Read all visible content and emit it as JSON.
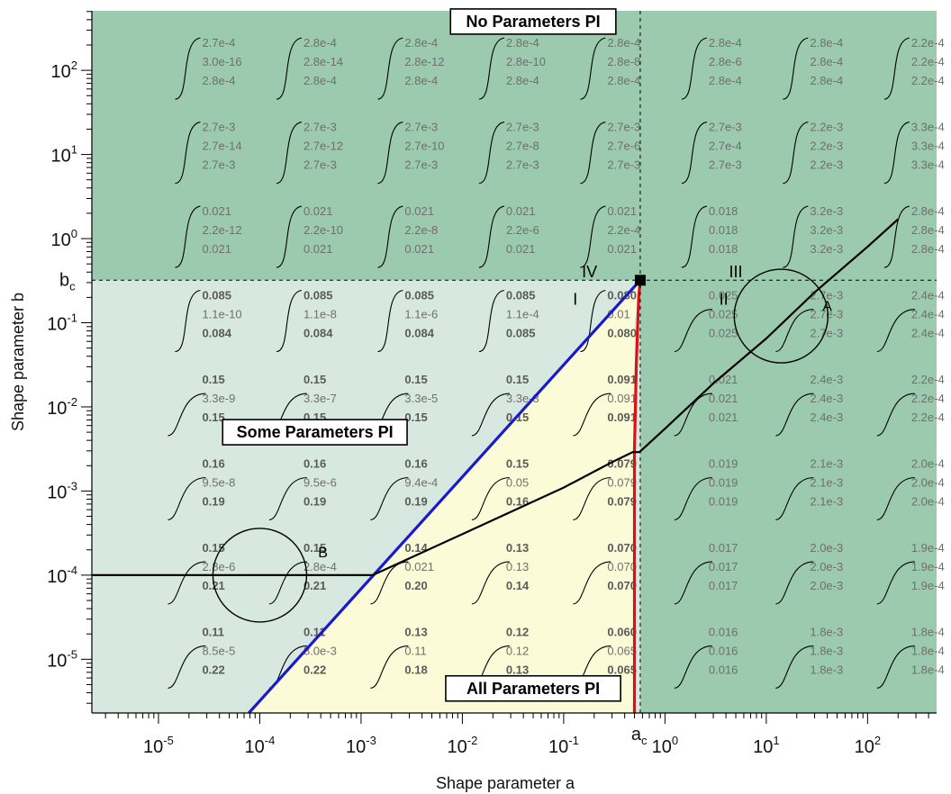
{
  "chart_data": {
    "type": "heatmap",
    "xlabel": "Shape parameter a",
    "ylabel": "Shape parameter b",
    "x_scale": "log",
    "y_scale": "log",
    "xlim": [
      2.2e-06,
      480
    ],
    "ylim": [
      2.3e-06,
      510
    ],
    "x_ticks": [
      {
        "value": 1e-05,
        "base": "10",
        "exp": "-5"
      },
      {
        "value": 0.0001,
        "base": "10",
        "exp": "-4"
      },
      {
        "value": 0.001,
        "base": "10",
        "exp": "-3"
      },
      {
        "value": 0.01,
        "base": "10",
        "exp": "-2"
      },
      {
        "value": 0.1,
        "base": "10",
        "exp": "-1"
      },
      {
        "value": 1,
        "base": "10",
        "exp": "0"
      },
      {
        "value": 10,
        "base": "10",
        "exp": "1"
      },
      {
        "value": 100,
        "base": "10",
        "exp": "2"
      }
    ],
    "y_ticks": [
      {
        "value": 100,
        "base": "10",
        "exp": "2"
      },
      {
        "value": 10,
        "base": "10",
        "exp": "1"
      },
      {
        "value": 1,
        "base": "10",
        "exp": "0"
      },
      {
        "value": 0.1,
        "base": "10",
        "exp": "-1"
      },
      {
        "value": 0.01,
        "base": "10",
        "exp": "-2"
      },
      {
        "value": 0.001,
        "base": "10",
        "exp": "-3"
      },
      {
        "value": 0.0001,
        "base": "10",
        "exp": "-4"
      },
      {
        "value": 1e-05,
        "base": "10",
        "exp": "-5"
      }
    ],
    "critical": {
      "a": 0.57,
      "b": 0.32,
      "a_label": {
        "base": "a",
        "sub": "c"
      },
      "b_label": {
        "base": "b",
        "sub": "c"
      }
    },
    "region_labels": [
      {
        "text": "No Parameters PI",
        "a": 0.05,
        "b": 380
      },
      {
        "text": "Some Parameters PI",
        "a": 0.00035,
        "b": 0.005
      },
      {
        "text": "All Parameters PI",
        "a": 0.05,
        "b": 4.5e-06
      }
    ],
    "roman_labels": [
      {
        "text": "IV",
        "a": 0.18,
        "b": 0.4
      },
      {
        "text": "I",
        "a": 0.13,
        "b": 0.19
      },
      {
        "text": "III",
        "a": 5.0,
        "b": 0.4
      },
      {
        "text": "II",
        "a": 3.8,
        "b": 0.19
      }
    ],
    "annotations": [
      {
        "text": "A",
        "a": 40,
        "b": 0.16
      },
      {
        "text": "B",
        "a": 0.00042,
        "b": 0.00019
      }
    ],
    "circles": [
      {
        "name": "A",
        "a": 14,
        "b": 0.12
      },
      {
        "name": "B",
        "a": 0.0001,
        "b": 0.0001
      }
    ],
    "cell_columns_a": [
      0.0001,
      0.001,
      0.01,
      0.1,
      1,
      10,
      100,
      1000
    ],
    "cell_rows_b": [
      100,
      10,
      1,
      0.1,
      0.01,
      0.001,
      0.0001,
      1e-05
    ],
    "cell_values": [
      [
        [
          "2.7e-4",
          "3.0e-16",
          "2.8e-4"
        ],
        [
          "2.8e-4",
          "2.8e-14",
          "2.8e-4"
        ],
        [
          "2.8e-4",
          "2.8e-12",
          "2.8e-4"
        ],
        [
          "2.8e-4",
          "2.8e-10",
          "2.8e-4"
        ],
        [
          "2.8e-4",
          "2.8e-8",
          "2.8e-4"
        ],
        [
          "2.8e-4",
          "2.8e-6",
          "2.8e-4"
        ],
        [
          "2.8e-4",
          "2.8e-4",
          "2.8e-4"
        ],
        [
          "2.2e-4",
          "2.2e-4",
          "2.2e-4"
        ]
      ],
      [
        [
          "2.7e-3",
          "2.7e-14",
          "2.7e-3"
        ],
        [
          "2.7e-3",
          "2.7e-12",
          "2.7e-3"
        ],
        [
          "2.7e-3",
          "2.7e-10",
          "2.7e-3"
        ],
        [
          "2.7e-3",
          "2.7e-8",
          "2.7e-3"
        ],
        [
          "2.7e-3",
          "2.7e-6",
          "2.7e-3"
        ],
        [
          "2.7e-3",
          "2.7e-4",
          "2.7e-3"
        ],
        [
          "2.2e-3",
          "2.2e-3",
          "2.2e-3"
        ],
        [
          "3.3e-4",
          "3.3e-4",
          "3.3e-4"
        ]
      ],
      [
        [
          "0.021",
          "2.2e-12",
          "0.021"
        ],
        [
          "0.021",
          "2.2e-10",
          "0.021"
        ],
        [
          "0.021",
          "2.2e-8",
          "0.021"
        ],
        [
          "0.021",
          "2.2e-6",
          "0.021"
        ],
        [
          "0.021",
          "2.2e-4",
          "0.021"
        ],
        [
          "0.018",
          "0.018",
          "0.018"
        ],
        [
          "3.2e-3",
          "3.2e-3",
          "3.2e-3"
        ],
        [
          "2.8e-4",
          "2.8e-4",
          "2.8e-4"
        ]
      ],
      [
        [
          "0.085",
          "1.1e-10",
          "0.084"
        ],
        [
          "0.085",
          "1.1e-8",
          "0.084"
        ],
        [
          "0.085",
          "1.1e-6",
          "0.084"
        ],
        [
          "0.085",
          "1.1e-4",
          "0.085"
        ],
        [
          "0.080",
          "0.01",
          "0.080"
        ],
        [
          "0.025",
          "0.025",
          "0.025"
        ],
        [
          "2.7e-3",
          "2.7e-3",
          "2.7e-3"
        ],
        [
          "2.4e-4",
          "2.4e-4",
          "2.4e-4"
        ]
      ],
      [
        [
          "0.15",
          "3.3e-9",
          "0.15"
        ],
        [
          "0.15",
          "3.3e-7",
          "0.15"
        ],
        [
          "0.15",
          "3.3e-5",
          "0.15"
        ],
        [
          "0.15",
          "3.3e-3",
          "0.15"
        ],
        [
          "0.091",
          "0.091",
          "0.091"
        ],
        [
          "0.021",
          "0.021",
          "0.021"
        ],
        [
          "2.4e-3",
          "2.4e-3",
          "2.4e-3"
        ],
        [
          "2.2e-4",
          "2.2e-4",
          "2.2e-4"
        ]
      ],
      [
        [
          "0.16",
          "9.5e-8",
          "0.19"
        ],
        [
          "0.16",
          "9.5e-6",
          "0.19"
        ],
        [
          "0.16",
          "9.4e-4",
          "0.19"
        ],
        [
          "0.15",
          "0.05",
          "0.16"
        ],
        [
          "0.079",
          "0.079",
          "0.079"
        ],
        [
          "0.019",
          "0.019",
          "0.019"
        ],
        [
          "2.1e-3",
          "2.1e-3",
          "2.1e-3"
        ],
        [
          "2.0e-4",
          "2.0e-4",
          "2.0e-4"
        ]
      ],
      [
        [
          "0.15",
          "2.8e-6",
          "0.21"
        ],
        [
          "0.15",
          "2.8e-4",
          "0.21"
        ],
        [
          "0.14",
          "0.021",
          "0.20"
        ],
        [
          "0.13",
          "0.13",
          "0.14"
        ],
        [
          "0.070",
          "0.070",
          "0.070"
        ],
        [
          "0.017",
          "0.017",
          "0.017"
        ],
        [
          "2.0e-3",
          "2.0e-3",
          "2.0e-3"
        ],
        [
          "1.9e-4",
          "1.9e-4",
          "1.9e-4"
        ]
      ],
      [
        [
          "0.11",
          "8.5e-5",
          "0.22"
        ],
        [
          "0.11",
          "8.0e-3",
          "0.22"
        ],
        [
          "0.13",
          "0.11",
          "0.18"
        ],
        [
          "0.12",
          "0.12",
          "0.13"
        ],
        [
          "0.060",
          "0.065",
          "0.065"
        ],
        [
          "0.016",
          "0.016",
          "0.016"
        ],
        [
          "1.8e-3",
          "1.8e-3",
          "1.8e-3"
        ],
        [
          "1.8e-4",
          "1.8e-4",
          "1.8e-4"
        ]
      ]
    ],
    "series": [
      {
        "color": "#1a1acc",
        "points": [
          [
            7.8e-05,
            2.3e-06
          ],
          [
            0.57,
            0.32
          ]
        ]
      },
      {
        "color": "#dd1111",
        "points": [
          [
            0.5,
            2.3e-06
          ],
          [
            0.5,
            0.003
          ],
          [
            0.52,
            0.03
          ],
          [
            0.55,
            0.2
          ],
          [
            0.57,
            0.32
          ]
        ]
      },
      {
        "color": "#000000",
        "points": [
          [
            2.2e-06,
            0.0001
          ],
          [
            0.0013,
            0.0001
          ],
          [
            0.02,
            0.00045
          ],
          [
            0.1,
            0.0011
          ],
          [
            0.3,
            0.0022
          ],
          [
            0.48,
            0.0029
          ],
          [
            0.56,
            0.0029
          ],
          [
            1,
            0.0055
          ],
          [
            3,
            0.019
          ],
          [
            10,
            0.065
          ],
          [
            30,
            0.23
          ],
          [
            100,
            0.8
          ],
          [
            200,
            1.7
          ]
        ]
      }
    ],
    "colors": {
      "no_pi_region": "#9ccaae",
      "some_pi_region": "#d7e8e0",
      "all_pi_region": "#fcfbd8",
      "right_region": "#9ccaae"
    }
  }
}
